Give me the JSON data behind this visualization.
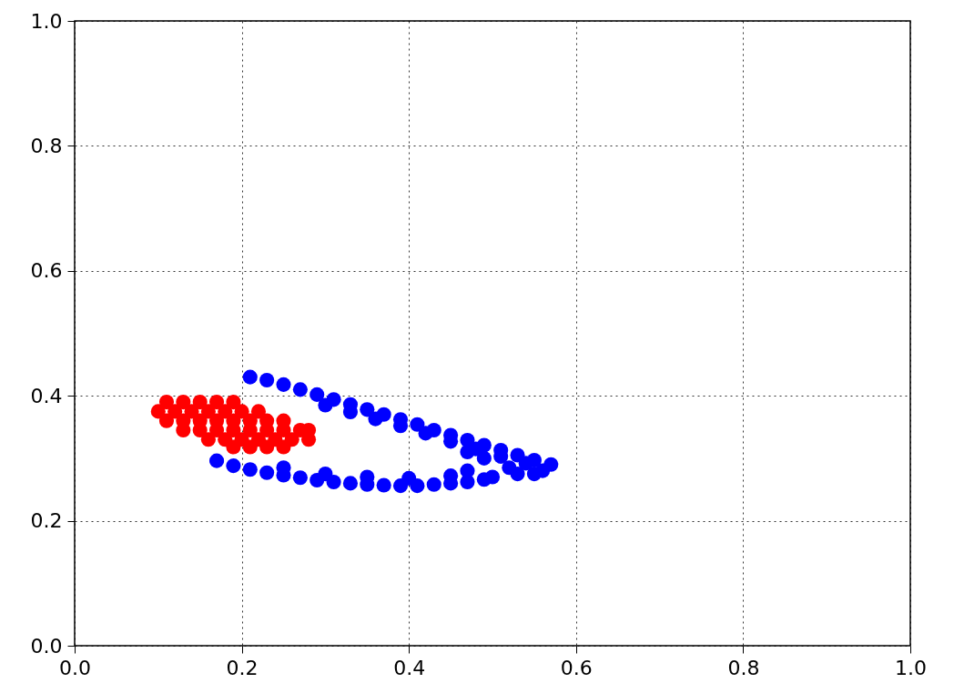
{
  "chart_data": {
    "type": "scatter",
    "marker": "circle",
    "grid": true,
    "xlim": [
      0,
      1
    ],
    "ylim": [
      0,
      1
    ],
    "xticks": [
      {
        "value": 0,
        "label": "0.0"
      },
      {
        "value": 0.2,
        "label": "0.2"
      },
      {
        "value": 0.4,
        "label": "0.4"
      },
      {
        "value": 0.6,
        "label": "0.6"
      },
      {
        "value": 0.8,
        "label": "0.8"
      },
      {
        "value": 1,
        "label": "1.0"
      }
    ],
    "yticks": [
      {
        "value": 0,
        "label": "0.0"
      },
      {
        "value": 0.2,
        "label": "0.2"
      },
      {
        "value": 0.4,
        "label": "0.4"
      },
      {
        "value": 0.6,
        "label": "0.6"
      },
      {
        "value": 0.8,
        "label": "0.8"
      },
      {
        "value": 1,
        "label": "1.0"
      }
    ],
    "series": [
      {
        "color": "#0000ff",
        "x": [
          0.21,
          0.23,
          0.25,
          0.27,
          0.29,
          0.31,
          0.33,
          0.35,
          0.37,
          0.39,
          0.41,
          0.43,
          0.45,
          0.47,
          0.49,
          0.51,
          0.53,
          0.55,
          0.57,
          0.3,
          0.33,
          0.36,
          0.39,
          0.42,
          0.45,
          0.48,
          0.51,
          0.54,
          0.47,
          0.49,
          0.52,
          0.55,
          0.47,
          0.5,
          0.53,
          0.56,
          0.17,
          0.19,
          0.21,
          0.23,
          0.25,
          0.27,
          0.29,
          0.31,
          0.33,
          0.35,
          0.37,
          0.39,
          0.41,
          0.43,
          0.45,
          0.47,
          0.49,
          0.25,
          0.3,
          0.35,
          0.4,
          0.45
        ],
        "values": [
          0.43,
          0.425,
          0.418,
          0.41,
          0.402,
          0.394,
          0.386,
          0.378,
          0.37,
          0.362,
          0.354,
          0.345,
          0.337,
          0.329,
          0.321,
          0.313,
          0.305,
          0.297,
          0.29,
          0.385,
          0.374,
          0.363,
          0.352,
          0.34,
          0.327,
          0.315,
          0.303,
          0.292,
          0.31,
          0.3,
          0.285,
          0.275,
          0.28,
          0.27,
          0.275,
          0.28,
          0.296,
          0.288,
          0.282,
          0.277,
          0.273,
          0.269,
          0.265,
          0.262,
          0.26,
          0.258,
          0.257,
          0.256,
          0.256,
          0.258,
          0.26,
          0.262,
          0.266,
          0.285,
          0.275,
          0.27,
          0.268,
          0.272
        ]
      },
      {
        "color": "#ff0000",
        "x": [
          0.11,
          0.13,
          0.15,
          0.17,
          0.19,
          0.1,
          0.12,
          0.14,
          0.16,
          0.18,
          0.2,
          0.22,
          0.11,
          0.13,
          0.15,
          0.17,
          0.19,
          0.21,
          0.23,
          0.25,
          0.13,
          0.15,
          0.17,
          0.19,
          0.21,
          0.23,
          0.25,
          0.27,
          0.28,
          0.16,
          0.18,
          0.2,
          0.22,
          0.24,
          0.26,
          0.28,
          0.19,
          0.21,
          0.23,
          0.25
        ],
        "values": [
          0.39,
          0.39,
          0.39,
          0.39,
          0.39,
          0.375,
          0.375,
          0.375,
          0.375,
          0.375,
          0.375,
          0.375,
          0.36,
          0.36,
          0.36,
          0.36,
          0.36,
          0.36,
          0.36,
          0.36,
          0.345,
          0.345,
          0.345,
          0.345,
          0.345,
          0.345,
          0.345,
          0.345,
          0.345,
          0.33,
          0.33,
          0.33,
          0.33,
          0.33,
          0.33,
          0.33,
          0.318,
          0.318,
          0.318,
          0.318
        ]
      }
    ]
  }
}
